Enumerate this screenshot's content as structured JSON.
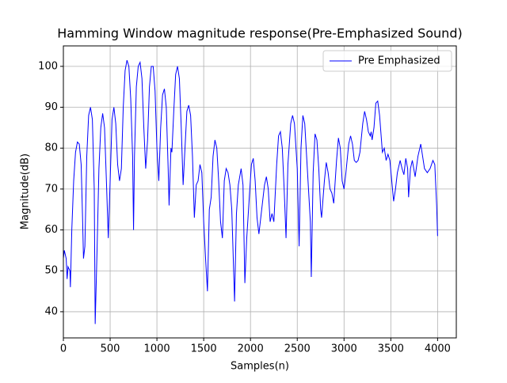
{
  "chart_data": {
    "type": "line",
    "title": "Hamming Window magnitude response(Pre-Emphasized Sound)",
    "xlabel": "Samples(n)",
    "ylabel": "Magnitude(dB)",
    "x": [
      0,
      10,
      30,
      40,
      50,
      70,
      75,
      90,
      110,
      130,
      150,
      170,
      190,
      205,
      215,
      230,
      250,
      270,
      290,
      310,
      330,
      340,
      360,
      380,
      400,
      420,
      440,
      460,
      480,
      500,
      520,
      540,
      560,
      580,
      600,
      620,
      640,
      660,
      680,
      700,
      720,
      740,
      750,
      760,
      780,
      800,
      820,
      840,
      860,
      880,
      900,
      920,
      940,
      960,
      980,
      1000,
      1020,
      1040,
      1060,
      1080,
      1100,
      1120,
      1130,
      1150,
      1160,
      1180,
      1200,
      1220,
      1240,
      1260,
      1280,
      1300,
      1320,
      1340,
      1360,
      1380,
      1400,
      1420,
      1440,
      1460,
      1480,
      1500,
      1520,
      1540,
      1560,
      1580,
      1600,
      1620,
      1640,
      1660,
      1680,
      1700,
      1720,
      1740,
      1760,
      1780,
      1800,
      1830,
      1850,
      1870,
      1900,
      1920,
      1940,
      1960,
      1990,
      2010,
      2030,
      2050,
      2070,
      2090,
      2120,
      2150,
      2170,
      2190,
      2210,
      2230,
      2250,
      2280,
      2300,
      2320,
      2340,
      2360,
      2380,
      2400,
      2430,
      2450,
      2470,
      2500,
      2520,
      2540,
      2560,
      2580,
      2600,
      2620,
      2640,
      2650,
      2670,
      2690,
      2710,
      2730,
      2750,
      2760,
      2790,
      2810,
      2830,
      2850,
      2870,
      2890,
      2920,
      2940,
      2960,
      2980,
      3000,
      3020,
      3050,
      3070,
      3090,
      3110,
      3130,
      3150,
      3170,
      3200,
      3220,
      3240,
      3260,
      3280,
      3290,
      3300,
      3320,
      3340,
      3360,
      3380,
      3400,
      3410,
      3430,
      3450,
      3470,
      3490,
      3510,
      3530,
      3550,
      3570,
      3600,
      3620,
      3640,
      3660,
      3680,
      3690,
      3710,
      3730,
      3760,
      3790,
      3820,
      3840,
      3860,
      3890,
      3920,
      3950,
      3970,
      3990,
      4000
    ],
    "series": [
      {
        "name": "Pre Emphasized",
        "color": "#0000ff",
        "values": [
          53,
          55,
          53,
          48,
          51,
          50,
          46,
          60,
          72,
          79,
          81.5,
          81,
          76,
          63,
          53,
          56,
          78,
          88,
          90,
          87,
          70,
          37,
          55,
          75,
          85,
          88.5,
          85,
          72,
          58,
          72,
          87,
          90,
          86,
          76,
          72,
          75,
          90,
          99,
          101.5,
          100,
          92,
          78,
          60,
          78,
          95,
          100,
          101,
          97,
          85,
          75,
          82,
          95,
          100,
          100,
          94,
          80,
          72,
          85,
          93,
          94.5,
          90,
          75,
          66,
          80,
          79,
          89,
          98,
          100,
          97,
          85,
          71,
          80,
          89,
          90.5,
          88,
          78,
          63,
          71,
          72,
          76,
          74,
          62,
          53,
          45,
          65,
          68,
          78,
          82,
          80,
          72,
          62,
          58,
          72,
          75,
          74,
          71,
          65,
          42.5,
          64,
          71,
          75,
          71,
          47,
          58,
          69,
          76,
          77.5,
          72,
          63,
          59,
          65,
          71,
          73,
          70,
          62,
          64,
          62,
          76,
          83,
          84,
          80,
          70,
          58,
          76,
          86,
          88,
          86,
          75,
          56,
          80,
          88,
          86,
          78,
          70,
          62,
          48.5,
          74,
          83.5,
          82,
          75,
          65,
          63,
          72,
          76.5,
          74,
          70,
          69,
          66.5,
          77,
          82.5,
          80,
          72,
          70,
          74,
          81,
          83,
          81,
          77,
          76.5,
          77,
          79,
          86,
          89,
          87,
          84,
          83,
          84,
          82,
          85,
          91,
          91.5,
          88,
          82,
          79,
          80,
          77,
          78.5,
          77,
          72,
          67,
          70,
          74,
          77,
          75,
          73.5,
          77.5,
          75,
          68,
          75,
          77,
          73,
          78,
          81,
          78,
          75,
          74,
          75,
          77,
          76,
          66,
          58.5
        ]
      }
    ],
    "xlim": [
      0,
      4200
    ],
    "ylim": [
      33.6,
      105
    ],
    "xticks": [
      0,
      500,
      1000,
      1500,
      2000,
      2500,
      3000,
      3500,
      4000
    ],
    "yticks": [
      40,
      50,
      60,
      70,
      80,
      90,
      100
    ],
    "grid": true,
    "legend": "upper-right"
  }
}
